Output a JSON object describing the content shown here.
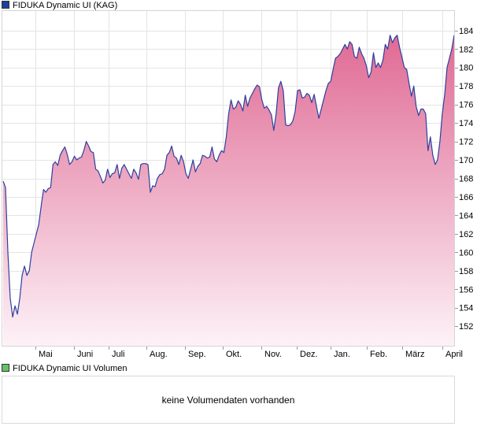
{
  "legend": {
    "price_label": "FIDUKA Dynamic UI (KAG)",
    "price_color": "#1f3f9f",
    "volume_label": "FIDUKA Dynamic UI Volumen",
    "volume_color": "#66c266"
  },
  "volume_panel": {
    "message": "keine Volumendaten vorhanden"
  },
  "chart_data": {
    "type": "area",
    "title": "FIDUKA Dynamic UI (KAG)",
    "xlabel": "",
    "ylabel": "",
    "ylim": [
      149.8,
      186.2
    ],
    "yticks": [
      152,
      154,
      156,
      158,
      160,
      162,
      164,
      166,
      168,
      170,
      172,
      174,
      176,
      178,
      180,
      182,
      184
    ],
    "xticks": [
      "Mai",
      "Juni",
      "Juli",
      "Aug.",
      "Sep.",
      "Okt.",
      "Nov.",
      "Dez.",
      "Jan.",
      "Feb.",
      "März",
      "April"
    ],
    "grid": true,
    "line_color": "#2e3f9e",
    "fill_top_color": "#e06a94",
    "fill_bottom_color": "#fdf2f7",
    "series": [
      {
        "name": "FIDUKA Dynamic UI (KAG)",
        "values": [
          167.7,
          167.0,
          160.0,
          155.0,
          153.0,
          154.2,
          153.3,
          155.0,
          157.5,
          158.5,
          157.5,
          158.0,
          160.0,
          161.0,
          162.0,
          163.0,
          165.0,
          166.8,
          166.5,
          166.9,
          167.0,
          169.5,
          169.8,
          169.4,
          170.5,
          171.0,
          171.4,
          170.6,
          169.5,
          169.8,
          170.4,
          170.0,
          170.2,
          170.3,
          171.0,
          172.0,
          171.5,
          170.9,
          170.8,
          169.0,
          168.8,
          168.2,
          167.5,
          167.8,
          169.0,
          168.1,
          168.5,
          168.6,
          169.5,
          168.0,
          169.1,
          169.5,
          169.0,
          168.5,
          168.0,
          169.0,
          168.6,
          167.9,
          169.5,
          169.6,
          169.6,
          169.5,
          166.5,
          167.2,
          167.1,
          168.0,
          168.4,
          168.5,
          169.0,
          170.5,
          170.8,
          171.5,
          170.4,
          170.2,
          169.5,
          170.5,
          169.8,
          168.5,
          168.0,
          169.0,
          170.0,
          168.7,
          169.3,
          169.6,
          170.5,
          170.4,
          170.2,
          170.3,
          171.4,
          170.1,
          169.8,
          170.5,
          171.0,
          170.8,
          172.5,
          175.0,
          176.5,
          175.5,
          175.7,
          176.4,
          176.0,
          175.3,
          177.0,
          175.8,
          176.7,
          177.2,
          177.7,
          178.1,
          177.9,
          176.5,
          175.6,
          175.8,
          175.4,
          174.9,
          173.2,
          175.0,
          177.8,
          178.5,
          177.5,
          173.8,
          173.7,
          173.8,
          174.2,
          175.2,
          177.5,
          177.6,
          176.7,
          176.8,
          177.2,
          177.0,
          176.2,
          177.1,
          175.8,
          174.5,
          175.5,
          176.5,
          177.5,
          178.3,
          178.5,
          179.8,
          181.0,
          181.2,
          181.5,
          182.0,
          182.5,
          182.0,
          182.8,
          182.5,
          181.2,
          181.0,
          182.2,
          181.5,
          181.0,
          180.2,
          178.9,
          179.5,
          181.6,
          180.0,
          180.5,
          180.0,
          180.8,
          182.5,
          182.0,
          183.5,
          182.7,
          183.2,
          183.5,
          182.2,
          181.1,
          180.0,
          179.8,
          178.3,
          176.9,
          178.0,
          175.8,
          174.8,
          175.5,
          175.5,
          175.0,
          171.0,
          172.5,
          170.5,
          169.5,
          170.0,
          172.0,
          175.0,
          177.0,
          180.0,
          181.0,
          182.0,
          183.5
        ]
      }
    ]
  }
}
